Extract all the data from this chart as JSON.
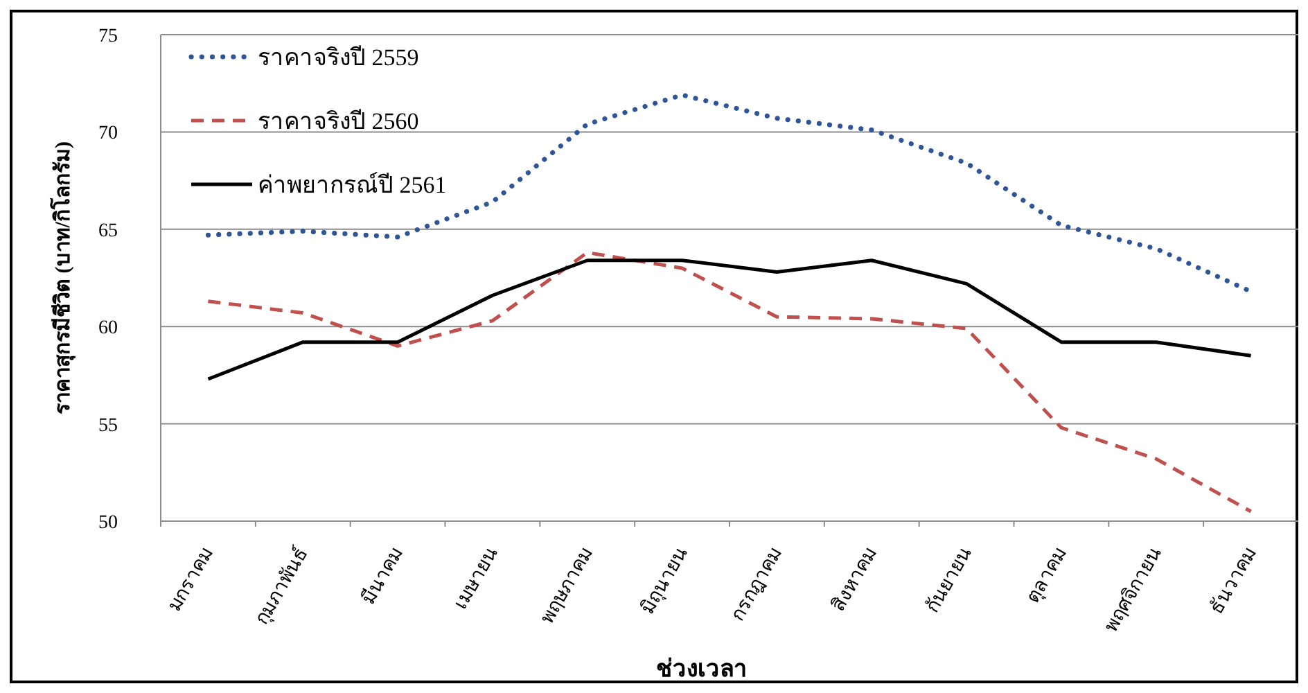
{
  "chart_data": {
    "type": "line",
    "xlabel": "ช่วงเวลา",
    "ylabel": "ราคาสุกรมีชีวิต (บาท/กิโลกรัม)",
    "categories": [
      "มกราคม",
      "กุมภาพันธ์",
      "มีนาคม",
      "เมษายน",
      "พฤษภาคม",
      "มิถุนายน",
      "กรกฎาคม",
      "สิงหาคม",
      "กันยายน",
      "ตุลาคม",
      "พฤศจิกายน",
      "ธันวาคม"
    ],
    "series": [
      {
        "name": "ราคาจริงปี 2559",
        "color": "#2e5597",
        "line_style": "dotted",
        "values": [
          64.7,
          64.9,
          64.6,
          66.4,
          70.4,
          71.9,
          70.7,
          70.1,
          68.4,
          65.2,
          64.0,
          61.8
        ]
      },
      {
        "name": "ราคาจริงปี 2560",
        "color": "#c0504d",
        "line_style": "dashed",
        "values": [
          61.3,
          60.7,
          59.0,
          60.3,
          63.8,
          63.0,
          60.5,
          60.4,
          59.9,
          54.8,
          53.2,
          50.5
        ]
      },
      {
        "name": "ค่าพยากรณ์ปี 2561",
        "color": "#000000",
        "line_style": "solid",
        "values": [
          57.3,
          59.2,
          59.2,
          61.6,
          63.4,
          63.4,
          62.8,
          63.4,
          62.2,
          59.2,
          59.2,
          58.5
        ]
      }
    ],
    "ylim": [
      50,
      75
    ],
    "yticks": [
      50,
      55,
      60,
      65,
      70,
      75
    ],
    "grid": "y",
    "legend": "top left",
    "marker": "none"
  }
}
